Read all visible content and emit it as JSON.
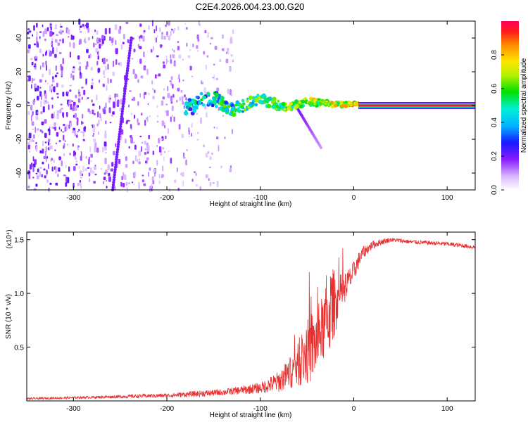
{
  "title": "C2E4.2026.004.23.00.G20",
  "chart_data": [
    {
      "type": "heatmap",
      "xlabel": "Height of straight line (km)",
      "ylabel": "Frequency (Hz)",
      "xlim": [
        -350,
        130
      ],
      "ylim": [
        -50,
        50
      ],
      "xticks": [
        -300,
        -200,
        -100,
        0,
        100
      ],
      "xtick_labels": [
        "-300",
        "-200",
        "-100",
        "0",
        "100"
      ],
      "yticks": [
        -40,
        -20,
        0,
        20,
        40
      ],
      "ytick_labels": [
        "-40",
        "-20",
        "0",
        "20",
        "40"
      ],
      "features": [
        {
          "name": "noise-region",
          "x_range": [
            -350,
            -130
          ],
          "amplitude_range": [
            0.05,
            0.25
          ]
        },
        {
          "name": "diagonal-streak",
          "points": [
            [
              -258,
              -50
            ],
            [
              -238,
              40
            ]
          ],
          "amplitude": 0.2
        },
        {
          "name": "carrier-band",
          "x_range": [
            -180,
            130
          ],
          "frequency_center": 1,
          "amplitude_range": [
            0.35,
            0.95
          ]
        },
        {
          "name": "steady-carrier",
          "x_range": [
            5,
            130
          ],
          "frequency": 0,
          "amplitude": 0.95
        },
        {
          "name": "lower-branch",
          "points": [
            [
              -60,
              -2
            ],
            [
              -35,
              -25
            ]
          ],
          "amplitude": 0.2
        }
      ],
      "colorbar": {
        "label": "Normalized spectral amplitude",
        "range": [
          0,
          1
        ],
        "ticks": [
          0.0,
          0.2,
          0.4,
          0.6,
          0.8
        ],
        "tick_labels": [
          "0.0",
          "0.2",
          "0.4",
          "0.6",
          "0.8"
        ]
      }
    },
    {
      "type": "line",
      "xlabel": "Height of straight line (km)",
      "ylabel": "SNR (10 * v/v)",
      "y_multiplier": "(x10⁴)",
      "xlim": [
        -350,
        130
      ],
      "ylim": [
        0,
        1.57
      ],
      "xticks": [
        -300,
        -200,
        -100,
        0,
        100
      ],
      "xtick_labels": [
        "-300",
        "-200",
        "-100",
        "0",
        "100"
      ],
      "yticks": [
        0.5,
        1.0,
        1.5
      ],
      "ytick_labels": [
        "0.5",
        "1.0",
        "1.5"
      ],
      "color": "#e83030",
      "series": [
        {
          "name": "SNR envelope",
          "x": [
            -350,
            -300,
            -250,
            -200,
            -160,
            -140,
            -120,
            -100,
            -80,
            -70,
            -60,
            -50,
            -45,
            -40,
            -35,
            -30,
            -25,
            -20,
            -15,
            -10,
            -5,
            0,
            5,
            10,
            20,
            30,
            40,
            60,
            80,
            100,
            130
          ],
          "values": [
            0.02,
            0.03,
            0.04,
            0.05,
            0.07,
            0.08,
            0.1,
            0.12,
            0.18,
            0.25,
            0.33,
            0.45,
            0.5,
            0.55,
            0.65,
            0.72,
            0.85,
            0.92,
            0.98,
            1.05,
            1.12,
            1.2,
            1.3,
            1.38,
            1.45,
            1.48,
            1.5,
            1.48,
            1.47,
            1.46,
            1.43
          ],
          "noise": [
            0.01,
            0.01,
            0.015,
            0.02,
            0.03,
            0.03,
            0.04,
            0.05,
            0.1,
            0.14,
            0.2,
            0.3,
            0.35,
            0.3,
            0.3,
            0.35,
            0.4,
            0.3,
            0.2,
            0.15,
            0.12,
            0.1,
            0.08,
            0.06,
            0.04,
            0.03,
            0.02,
            0.02,
            0.02,
            0.02,
            0.02
          ]
        }
      ]
    }
  ]
}
